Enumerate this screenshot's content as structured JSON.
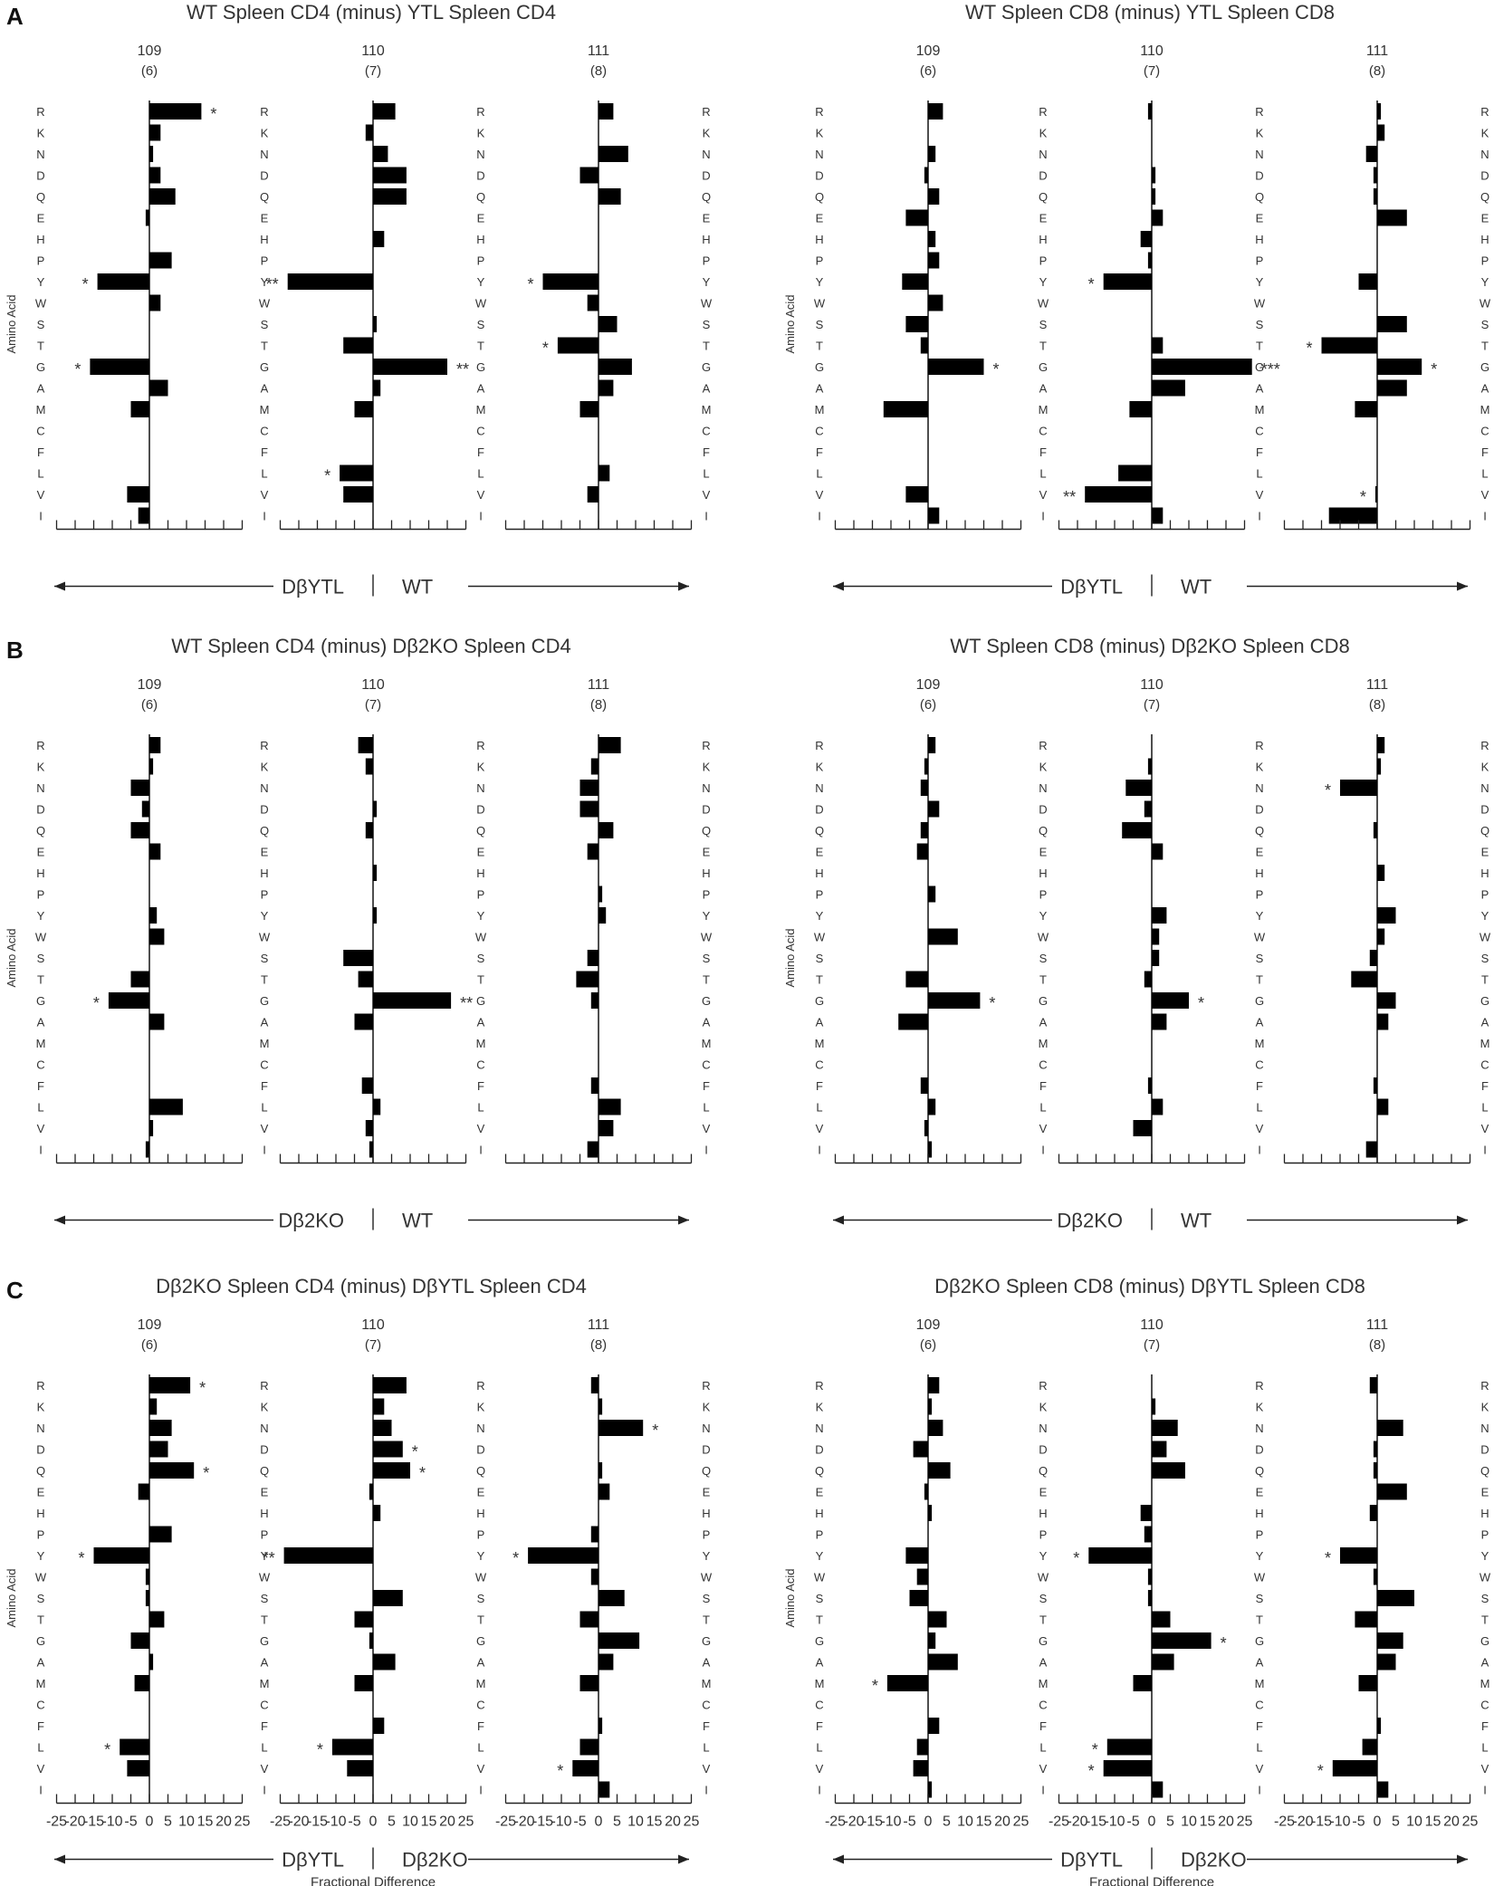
{
  "amino_acids": [
    "R",
    "K",
    "N",
    "D",
    "Q",
    "E",
    "H",
    "P",
    "Y",
    "W",
    "S",
    "T",
    "G",
    "A",
    "M",
    "C",
    "F",
    "L",
    "V",
    "I"
  ],
  "y_axis_label": "Amino Acid",
  "positions": [
    {
      "number": "109",
      "sub": "(6)"
    },
    {
      "number": "110",
      "sub": "(7)"
    },
    {
      "number": "111",
      "sub": "(8)"
    }
  ],
  "tick_labels": [
    "-25",
    "-20",
    "-15",
    "-10",
    "-5",
    "0",
    "5",
    "10",
    "15",
    "20",
    "25"
  ],
  "x_axis_label": "Fractional Difference",
  "colors": {
    "bar": "#000000",
    "axis": "#222222",
    "text": "#333333"
  },
  "chart_data": [
    {
      "type": "bar",
      "orientation": "horizontal",
      "panel_letter": "A",
      "title": "WT Spleen CD4 (minus) YTL Spleen CD4",
      "xlim": [
        -25,
        25
      ],
      "left_label": "DβYTL",
      "right_label": "WT",
      "series": [
        {
          "position": "109",
          "values": [
            14,
            3,
            1,
            3,
            7,
            -1,
            0,
            6,
            -14,
            3,
            0,
            0,
            -16,
            5,
            -5,
            0,
            0,
            0,
            -6,
            -3
          ],
          "stars": {
            "R": "*",
            "Y": "*",
            "G": "*"
          }
        },
        {
          "position": "110",
          "values": [
            6,
            -2,
            4,
            9,
            9,
            0,
            3,
            0,
            -23,
            0,
            1,
            -8,
            20,
            2,
            -5,
            0,
            0,
            -9,
            -8,
            0
          ],
          "stars": {
            "Y": "**",
            "G": "**",
            "L": "*"
          }
        },
        {
          "position": "111",
          "values": [
            4,
            0,
            8,
            -5,
            6,
            0,
            0,
            0,
            -15,
            -3,
            5,
            -11,
            9,
            4,
            -5,
            0,
            0,
            3,
            -3,
            0
          ],
          "stars": {
            "Y": "*",
            "T": "*"
          }
        }
      ]
    },
    {
      "type": "bar",
      "orientation": "horizontal",
      "panel_letter": "",
      "title": "WT Spleen CD8 (minus) YTL Spleen CD8",
      "xlim": [
        -25,
        25
      ],
      "left_label": "DβYTL",
      "right_label": "WT",
      "series": [
        {
          "position": "109",
          "values": [
            4,
            0,
            2,
            -1,
            3,
            -6,
            2,
            3,
            -7,
            4,
            -6,
            -2,
            15,
            0,
            -12,
            0,
            0,
            0,
            -6,
            3
          ],
          "stars": {
            "G": "*"
          }
        },
        {
          "position": "110",
          "values": [
            -1,
            0,
            0,
            1,
            1,
            3,
            -3,
            -1,
            -13,
            0,
            0,
            3,
            27,
            9,
            -6,
            0,
            0,
            -9,
            -18,
            3
          ],
          "stars": {
            "Y": "*",
            "G": "***",
            "V": "**"
          }
        },
        {
          "position": "111",
          "values": [
            1,
            2,
            -3,
            -1,
            -1,
            8,
            0,
            0,
            -5,
            0,
            8,
            -15,
            12,
            8,
            -6,
            0,
            0,
            0,
            -0.5,
            -13
          ],
          "stars": {
            "T": "*",
            "G": "*",
            "V": "*"
          }
        }
      ]
    },
    {
      "type": "bar",
      "orientation": "horizontal",
      "panel_letter": "B",
      "title": "WT Spleen CD4 (minus) Dβ2KO Spleen CD4",
      "xlim": [
        -25,
        25
      ],
      "left_label": "Dβ2KO",
      "right_label": "WT",
      "series": [
        {
          "position": "109",
          "values": [
            3,
            1,
            -5,
            -2,
            -5,
            3,
            0,
            0,
            2,
            4,
            0,
            -5,
            -11,
            4,
            0,
            0,
            0,
            9,
            1,
            -1
          ],
          "stars": {
            "G": "*"
          }
        },
        {
          "position": "110",
          "values": [
            -4,
            -2,
            0,
            1,
            -2,
            0,
            1,
            0,
            1,
            0,
            -8,
            -4,
            21,
            -5,
            0,
            0,
            -3,
            2,
            -2,
            -1
          ],
          "stars": {
            "G": "**"
          }
        },
        {
          "position": "111",
          "values": [
            6,
            -2,
            -5,
            -5,
            4,
            -3,
            0,
            1,
            2,
            0,
            -3,
            -6,
            -2,
            0,
            0,
            0,
            -2,
            6,
            4,
            -3
          ],
          "stars": {}
        }
      ]
    },
    {
      "type": "bar",
      "orientation": "horizontal",
      "panel_letter": "",
      "title": "WT Spleen CD8 (minus) Dβ2KO Spleen CD8",
      "xlim": [
        -25,
        25
      ],
      "left_label": "Dβ2KO",
      "right_label": "WT",
      "series": [
        {
          "position": "109",
          "values": [
            2,
            -1,
            -2,
            3,
            -2,
            -3,
            0,
            2,
            0,
            8,
            0,
            -6,
            14,
            -8,
            0,
            0,
            -2,
            2,
            -1,
            1
          ],
          "stars": {
            "G": "*"
          }
        },
        {
          "position": "110",
          "values": [
            0,
            -1,
            -7,
            -2,
            -8,
            3,
            0,
            0,
            4,
            2,
            2,
            -2,
            10,
            4,
            0,
            0,
            -1,
            3,
            -5,
            0
          ],
          "stars": {
            "G": "*"
          }
        },
        {
          "position": "111",
          "values": [
            2,
            1,
            -10,
            0,
            -1,
            0,
            2,
            0,
            5,
            2,
            -2,
            -7,
            5,
            3,
            0,
            0,
            -1,
            3,
            0,
            -3
          ],
          "stars": {
            "N": "*"
          }
        }
      ]
    },
    {
      "type": "bar",
      "orientation": "horizontal",
      "panel_letter": "C",
      "title": "Dβ2KO Spleen CD4 (minus) DβYTL Spleen CD4",
      "xlim": [
        -25,
        25
      ],
      "left_label": "DβYTL",
      "right_label": "Dβ2KO",
      "series": [
        {
          "position": "109",
          "values": [
            11,
            2,
            6,
            5,
            12,
            -3,
            0,
            6,
            -15,
            -1,
            -1,
            4,
            -5,
            1,
            -4,
            0,
            0,
            -8,
            -6,
            0
          ],
          "stars": {
            "R": "*",
            "Q": "*",
            "Y": "*",
            "L": "*"
          }
        },
        {
          "position": "110",
          "values": [
            9,
            3,
            5,
            8,
            10,
            -1,
            2,
            0,
            -24,
            0,
            8,
            -5,
            -1,
            6,
            -5,
            0,
            3,
            -11,
            -7,
            0
          ],
          "stars": {
            "D": "*",
            "Q": "*",
            "Y": "**",
            "L": "*"
          }
        },
        {
          "position": "111",
          "values": [
            -2,
            1,
            12,
            0,
            1,
            3,
            0,
            -2,
            -19,
            -2,
            7,
            -5,
            11,
            4,
            -5,
            0,
            1,
            -5,
            -7,
            3
          ],
          "stars": {
            "N": "*",
            "Y": "*",
            "V": "*"
          }
        }
      ]
    },
    {
      "type": "bar",
      "orientation": "horizontal",
      "panel_letter": "",
      "title": "Dβ2KO Spleen CD8 (minus) DβYTL Spleen CD8",
      "xlim": [
        -25,
        25
      ],
      "left_label": "DβYTL",
      "right_label": "Dβ2KO",
      "series": [
        {
          "position": "109",
          "values": [
            3,
            1,
            4,
            -4,
            6,
            -1,
            1,
            0,
            -6,
            -3,
            -5,
            5,
            2,
            8,
            -11,
            0,
            3,
            -3,
            -4,
            1
          ],
          "stars": {
            "M": "*"
          }
        },
        {
          "position": "110",
          "values": [
            0,
            1,
            7,
            4,
            9,
            0,
            -3,
            -2,
            -17,
            -1,
            -1,
            5,
            16,
            6,
            -5,
            0,
            0,
            -12,
            -13,
            3
          ],
          "stars": {
            "Y": "*",
            "G": "*",
            "L": "*",
            "V": "*"
          }
        },
        {
          "position": "111",
          "values": [
            -2,
            0,
            7,
            -1,
            -1,
            8,
            -2,
            0,
            -10,
            -1,
            10,
            -6,
            7,
            5,
            -5,
            0,
            1,
            -4,
            -12,
            3
          ],
          "stars": {
            "Y": "*",
            "V": "*"
          }
        }
      ]
    }
  ]
}
